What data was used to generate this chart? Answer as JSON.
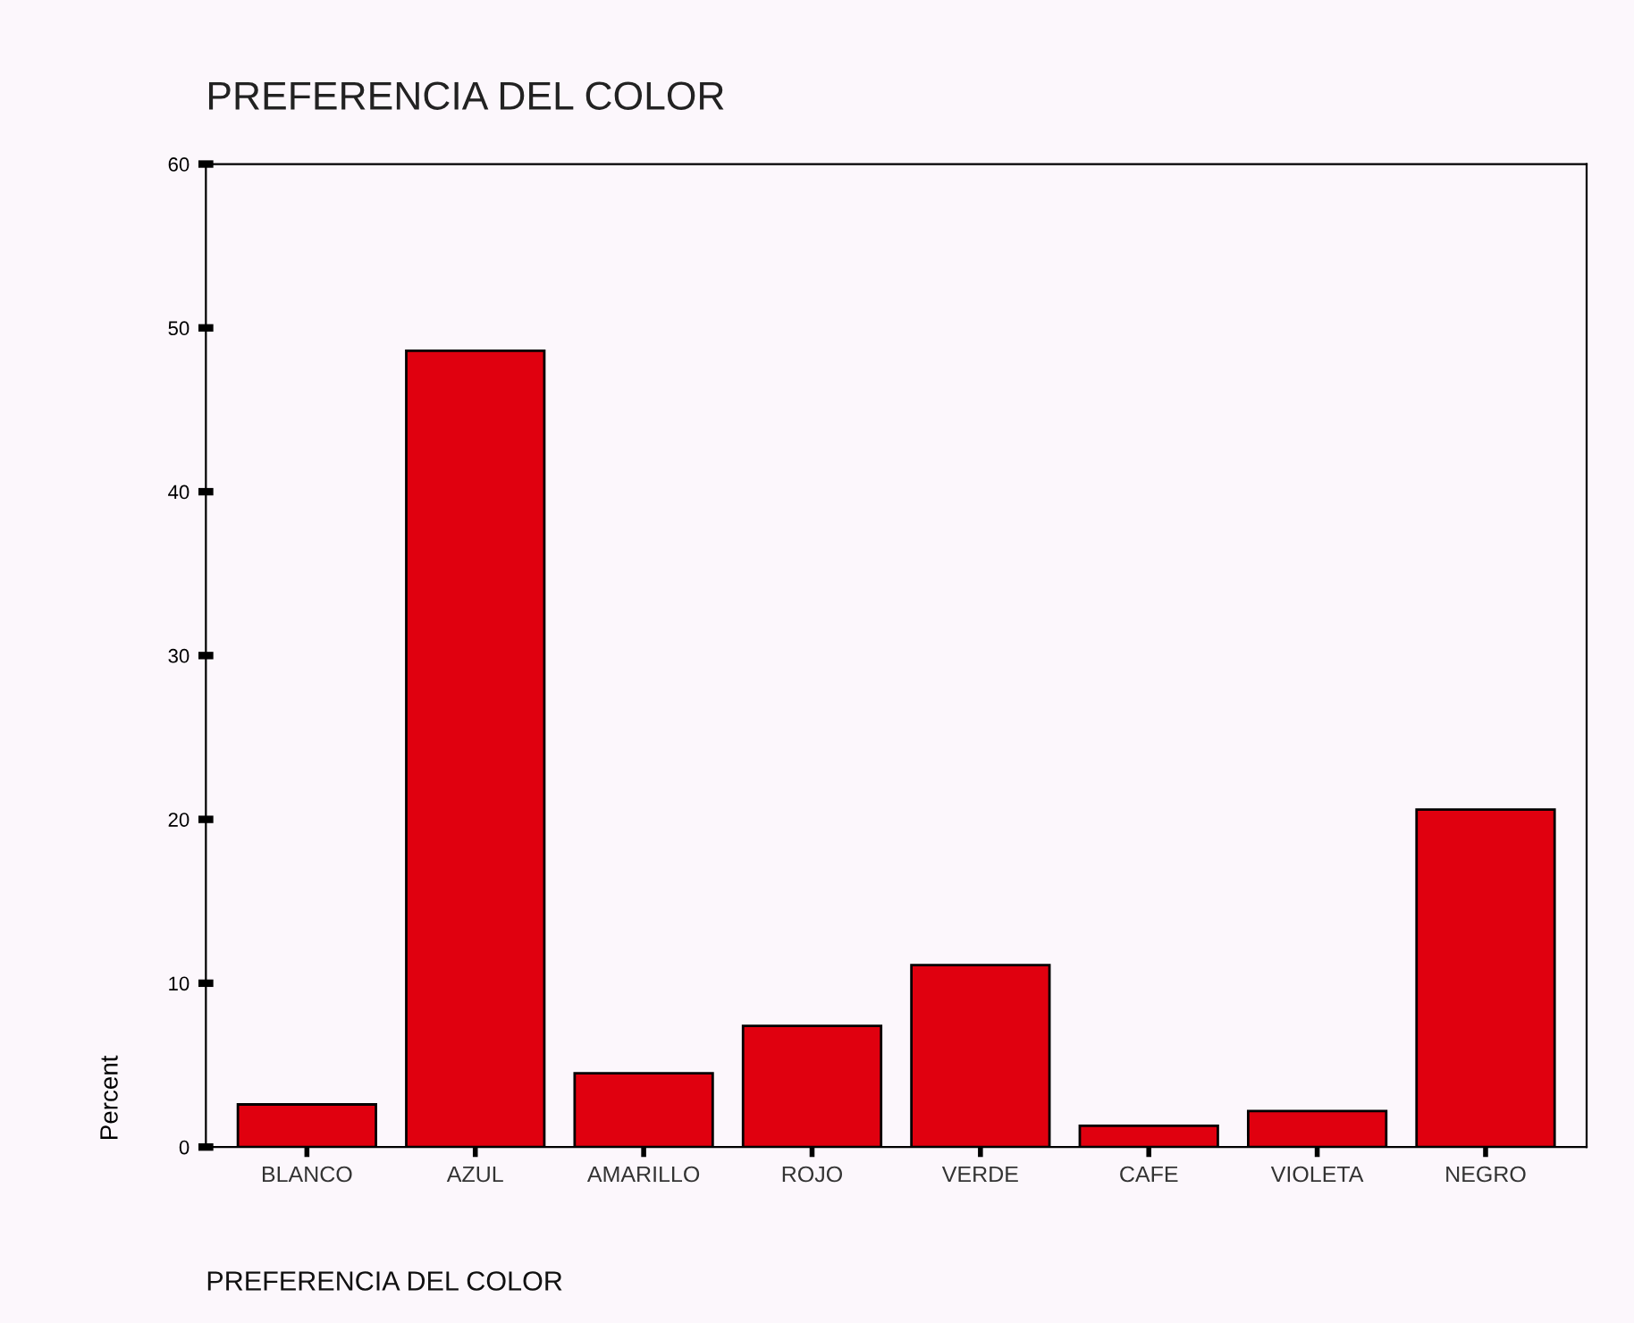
{
  "chart_data": {
    "type": "bar",
    "title": "PREFERENCIA DEL COLOR",
    "xlabel": "PREFERENCIA DEL COLOR",
    "ylabel": "Percent",
    "categories": [
      "BLANCO",
      "AZUL",
      "AMARILLO",
      "ROJO",
      "VERDE",
      "CAFE",
      "VIOLETA",
      "NEGRO"
    ],
    "values": [
      2.6,
      48.6,
      4.5,
      7.4,
      11.1,
      1.3,
      2.2,
      20.6
    ],
    "color": "#e0000f",
    "ylim": [
      0,
      60
    ],
    "yticks": [
      0,
      10,
      20,
      30,
      40,
      50,
      60
    ],
    "grid": false,
    "legend": false
  }
}
